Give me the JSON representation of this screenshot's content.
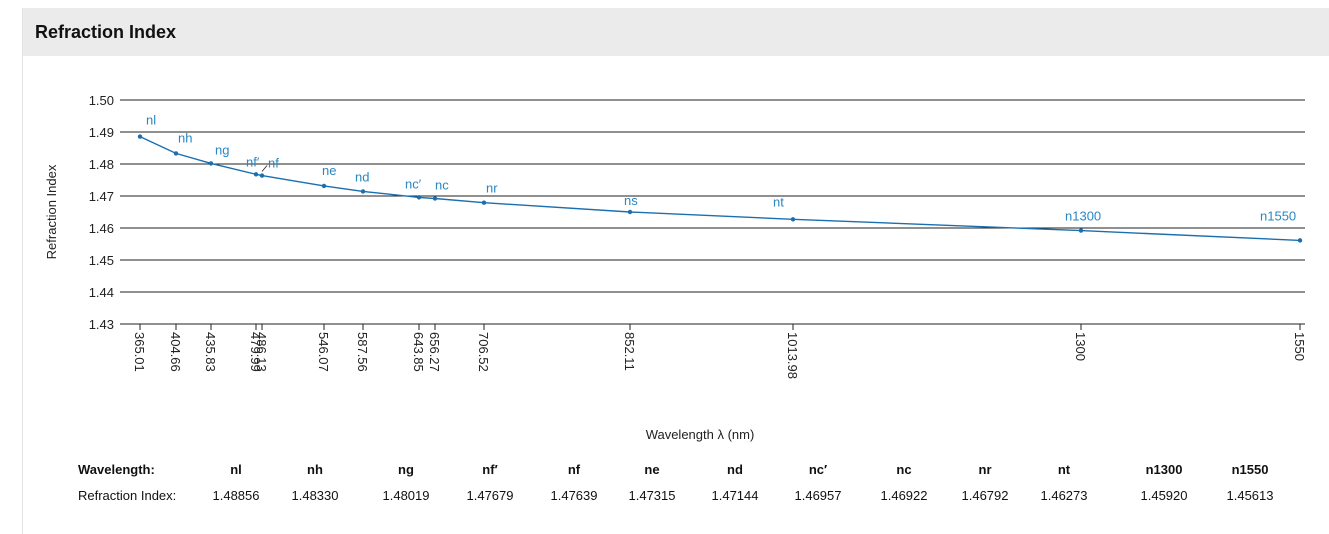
{
  "header": {
    "title": "Refraction Index"
  },
  "colors": {
    "line": "#1a6fb0",
    "label": "#2a87c2",
    "grid": "#222222",
    "header_bg": "#ebebeb"
  },
  "chart_data": {
    "type": "line",
    "title": "",
    "xlabel": "Wavelength λ (nm)",
    "ylabel": "Refraction Index",
    "ylim": [
      1.43,
      1.5
    ],
    "yticks": [
      "1.50",
      "1.49",
      "1.48",
      "1.47",
      "1.46",
      "1.45",
      "1.44",
      "1.43"
    ],
    "xticks": [
      "365.01",
      "404.66",
      "435.83",
      "479.99",
      "486.13",
      "546.07",
      "587.56",
      "643.85",
      "656.27",
      "706.52",
      "852.11",
      "1013.98",
      "1300",
      "1550"
    ],
    "grid": true,
    "series": [
      {
        "points": [
          {
            "label": "nl",
            "x": 365.01,
            "y": 1.48856
          },
          {
            "label": "nh",
            "x": 404.66,
            "y": 1.4833
          },
          {
            "label": "ng",
            "x": 435.83,
            "y": 1.48019
          },
          {
            "label": "nf′",
            "x": 479.99,
            "y": 1.47679
          },
          {
            "label": "nf",
            "x": 486.13,
            "y": 1.47639
          },
          {
            "label": "ne",
            "x": 546.07,
            "y": 1.47315
          },
          {
            "label": "nd",
            "x": 587.56,
            "y": 1.47144
          },
          {
            "label": "nc′",
            "x": 643.85,
            "y": 1.46957
          },
          {
            "label": "nc",
            "x": 656.27,
            "y": 1.46922
          },
          {
            "label": "nr",
            "x": 706.52,
            "y": 1.46792
          },
          {
            "label": "ns",
            "x": 852.11,
            "y": 1.465
          },
          {
            "label": "nt",
            "x": 1013.98,
            "y": 1.46273
          },
          {
            "label": "n1300",
            "x": 1300,
            "y": 1.4592
          },
          {
            "label": "n1550",
            "x": 1550,
            "y": 1.45613
          }
        ]
      }
    ]
  },
  "table": {
    "row1_label": "Wavelength:",
    "row2_label": "Refraction Index:",
    "headers": [
      "nl",
      "nh",
      "ng",
      "nf′",
      "nf",
      "ne",
      "nd",
      "nc′",
      "nc",
      "nr",
      "nt",
      "n1300",
      "n1550"
    ],
    "values": [
      "1.48856",
      "1.48330",
      "1.48019",
      "1.47679",
      "1.47639",
      "1.47315",
      "1.47144",
      "1.46957",
      "1.46922",
      "1.46792",
      "1.46273",
      "1.45920",
      "1.45613"
    ]
  }
}
